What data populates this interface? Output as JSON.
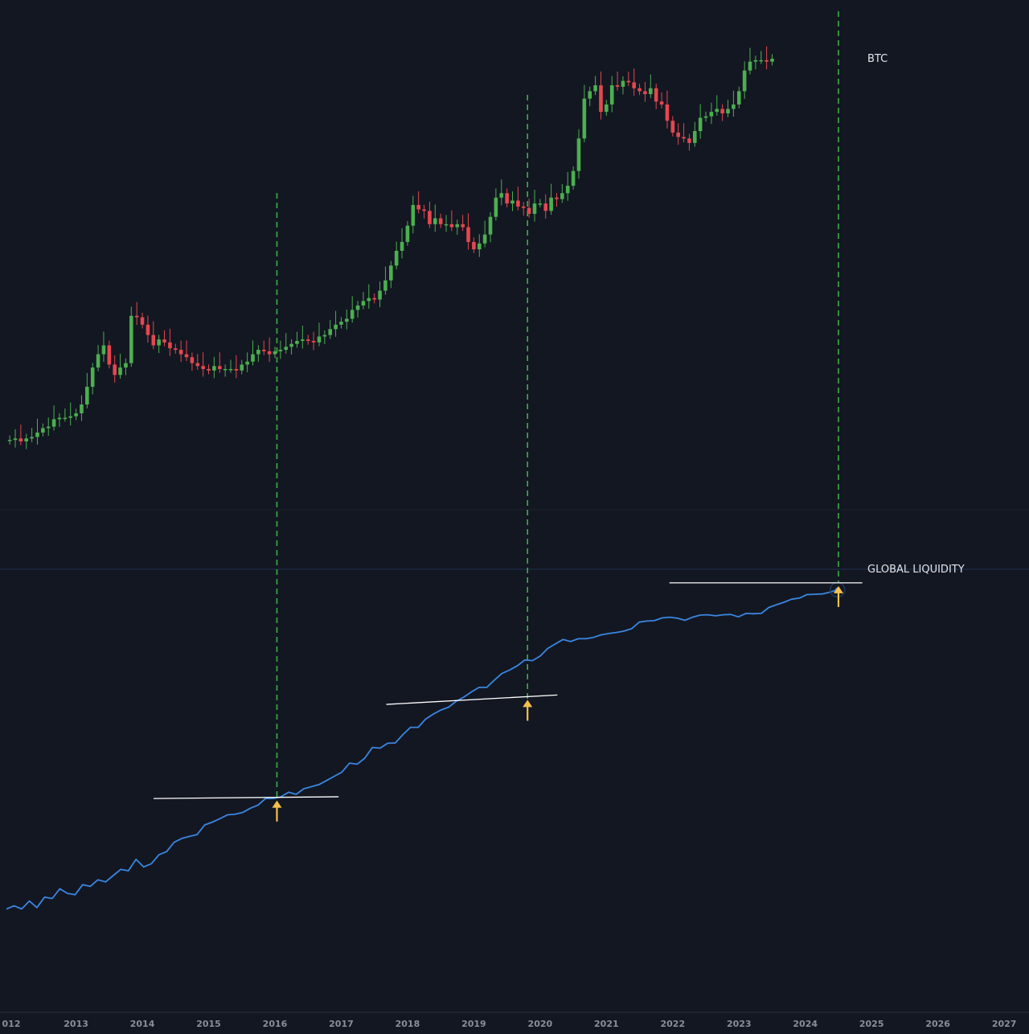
{
  "colors": {
    "background": "#131722",
    "up": "#4caf50",
    "down": "#e5474f",
    "liquidity": "#3a86e0",
    "vline": "#3cb043",
    "resistance": "#ffffff",
    "arrow": "#f5c04a",
    "axis_text": "#8a8e99",
    "label_text": "#e3e5ea"
  },
  "labels": {
    "btc": "BTC",
    "liquidity": "GLOBAL LIQUIDITY"
  },
  "chart_data": [
    {
      "type": "candlestick",
      "title": "",
      "series_name": "BTC",
      "scale": "log",
      "interval": "monthly",
      "x_range": [
        2011.95,
        2027.35
      ],
      "y_range_relative": [
        0.0,
        1.0
      ],
      "closes": [
        0.04,
        0.05,
        0.03,
        0.05,
        0.06,
        0.09,
        0.12,
        0.13,
        0.18,
        0.19,
        0.19,
        0.2,
        0.22,
        0.28,
        0.4,
        0.53,
        0.62,
        0.68,
        0.55,
        0.48,
        0.53,
        0.56,
        0.88,
        0.87,
        0.82,
        0.75,
        0.68,
        0.72,
        0.7,
        0.66,
        0.65,
        0.62,
        0.6,
        0.56,
        0.54,
        0.52,
        0.51,
        0.54,
        0.52,
        0.52,
        0.52,
        0.51,
        0.55,
        0.57,
        0.62,
        0.65,
        0.64,
        0.62,
        0.64,
        0.65,
        0.67,
        0.69,
        0.71,
        0.72,
        0.71,
        0.7,
        0.74,
        0.75,
        0.79,
        0.82,
        0.84,
        0.86,
        0.92,
        0.95,
        0.98,
        1.0,
        0.99,
        1.05,
        1.12,
        1.22,
        1.32,
        1.38,
        1.49,
        1.63,
        1.6,
        1.59,
        1.5,
        1.54,
        1.5,
        1.5,
        1.48,
        1.5,
        1.48,
        1.38,
        1.33,
        1.37,
        1.43,
        1.55,
        1.68,
        1.71,
        1.64,
        1.66,
        1.62,
        1.61,
        1.57,
        1.64,
        1.64,
        1.59,
        1.68,
        1.67,
        1.71,
        1.76,
        1.86,
        2.08,
        2.35,
        2.4,
        2.44,
        2.26,
        2.31,
        2.44,
        2.43,
        2.47,
        2.46,
        2.42,
        2.4,
        2.38,
        2.42,
        2.33,
        2.31,
        2.2,
        2.12,
        2.09,
        2.08,
        2.05,
        2.13,
        2.22,
        2.23,
        2.26,
        2.28,
        2.25,
        2.28,
        2.31,
        2.4,
        2.54,
        2.6,
        2.61,
        2.61,
        2.6,
        2.62
      ],
      "vertical_markers_x": [
        2016.03,
        2019.81,
        2024.5
      ],
      "x_ticks": [
        "012",
        "2013",
        "2014",
        "2015",
        "2016",
        "2017",
        "2018",
        "2019",
        "2020",
        "2021",
        "2022",
        "2023",
        "2024",
        "2025",
        "2026",
        "2027"
      ]
    },
    {
      "type": "line",
      "title": "",
      "series_name": "GLOBAL LIQUIDITY",
      "x_range": [
        2011.95,
        2027.35
      ],
      "y_range_relative": [
        0.0,
        1.0
      ],
      "values": [
        0.022,
        0.031,
        0.022,
        0.045,
        0.026,
        0.056,
        0.052,
        0.08,
        0.067,
        0.063,
        0.092,
        0.087,
        0.106,
        0.1,
        0.118,
        0.136,
        0.132,
        0.165,
        0.143,
        0.152,
        0.178,
        0.187,
        0.214,
        0.225,
        0.231,
        0.236,
        0.264,
        0.272,
        0.282,
        0.293,
        0.295,
        0.3,
        0.312,
        0.321,
        0.34,
        0.34,
        0.345,
        0.358,
        0.352,
        0.368,
        0.374,
        0.38,
        0.392,
        0.404,
        0.416,
        0.442,
        0.439,
        0.456,
        0.487,
        0.485,
        0.499,
        0.5,
        0.524,
        0.545,
        0.545,
        0.569,
        0.583,
        0.595,
        0.603,
        0.62,
        0.632,
        0.647,
        0.66,
        0.66,
        0.681,
        0.7,
        0.71,
        0.722,
        0.739,
        0.737,
        0.75,
        0.772,
        0.785,
        0.798,
        0.792,
        0.8,
        0.8,
        0.804,
        0.811,
        0.815,
        0.818,
        0.822,
        0.829,
        0.848,
        0.851,
        0.852,
        0.86,
        0.862,
        0.859,
        0.853,
        0.862,
        0.868,
        0.869,
        0.866,
        0.869,
        0.87,
        0.863,
        0.873,
        0.872,
        0.873,
        0.89,
        0.898,
        0.905,
        0.914,
        0.917,
        0.927,
        0.928,
        0.929,
        0.934,
        0.941
      ],
      "resistance_lines": [
        {
          "x": [
            2014.17,
            2016.96
          ],
          "y": [
            0.34,
            0.345
          ]
        },
        {
          "x": [
            2017.68,
            2020.26
          ],
          "y": [
            0.611,
            0.638
          ]
        },
        {
          "x": [
            2021.95,
            2024.86
          ],
          "y": [
            0.961,
            0.961
          ]
        }
      ],
      "arrows_x": [
        2016.03,
        2019.81,
        2024.5
      ]
    }
  ]
}
